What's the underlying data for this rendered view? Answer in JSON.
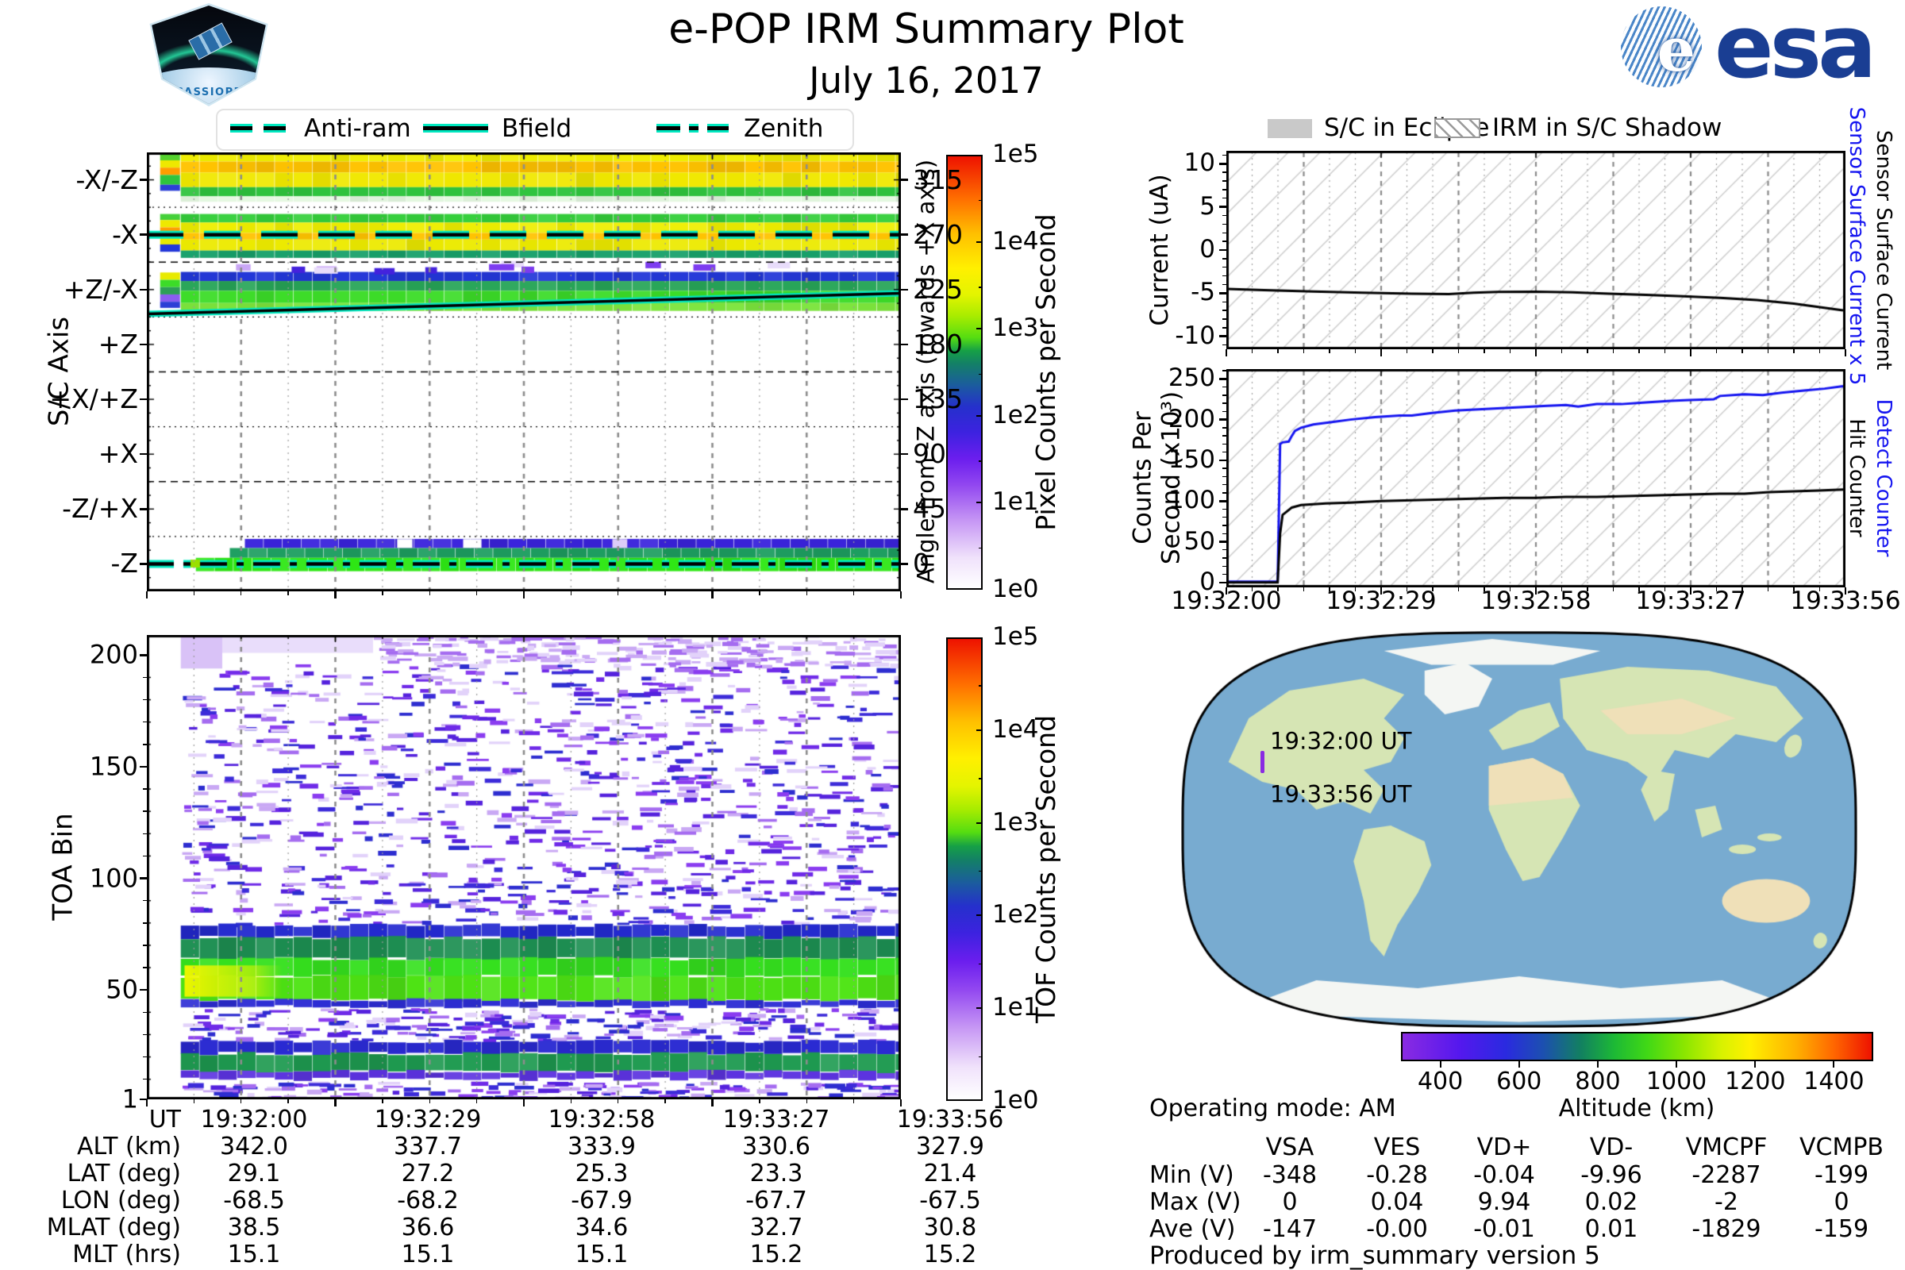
{
  "header": {
    "title": "e-POP IRM Summary Plot",
    "date": "July 16, 2017",
    "cassiope_label": "CASSIOPE",
    "esa_label": "esa"
  },
  "colors": {
    "teal": "#00e8c0",
    "series_blue": "#1414f0",
    "hatch": "#cbcbcb",
    "eclipse_gray": "#c9c9c9",
    "grid_gray": "#8c8c8c",
    "track_purple": "#8a2be2",
    "ocean": "#78abd0",
    "land": "#d6e5b4",
    "desert": "#efe0b8",
    "ice": "#f4f6f3",
    "esa_blue": "#1a3e93",
    "cassiope_blue": "#2a7fc0"
  },
  "left_legend": {
    "items": [
      {
        "label": "Anti-ram",
        "style": "dashed"
      },
      {
        "label": "Bfield",
        "style": "solid"
      },
      {
        "label": "Zenith",
        "style": "dashdot"
      }
    ]
  },
  "right_legend": {
    "items": [
      {
        "label": "S/C in Eclipse",
        "style": "gray-patch"
      },
      {
        "label": "IRM in S/C Shadow",
        "style": "hatched-patch"
      }
    ]
  },
  "time_axis": {
    "ticks": [
      "19:32:00",
      "19:32:29",
      "19:32:58",
      "19:33:27",
      "19:33:56"
    ]
  },
  "colorbar_stops": [
    [
      0,
      "#ffffff"
    ],
    [
      0.07,
      "#f0e2fb"
    ],
    [
      0.16,
      "#c493f4"
    ],
    [
      0.24,
      "#9146f0"
    ],
    [
      0.3,
      "#6b1eee"
    ],
    [
      0.36,
      "#3d22e0"
    ],
    [
      0.42,
      "#2530cc"
    ],
    [
      0.47,
      "#1b5c9e"
    ],
    [
      0.52,
      "#138066"
    ],
    [
      0.55,
      "#16a046"
    ],
    [
      0.58,
      "#55dd11"
    ],
    [
      0.63,
      "#a8ec00"
    ],
    [
      0.68,
      "#e4f400"
    ],
    [
      0.74,
      "#fff000"
    ],
    [
      0.82,
      "#ffc000"
    ],
    [
      0.9,
      "#ff7000"
    ],
    [
      1,
      "#ee1200"
    ]
  ],
  "altitude_stops": [
    [
      0,
      "#8a2be2"
    ],
    [
      0.12,
      "#5518ee"
    ],
    [
      0.22,
      "#2a2ae0"
    ],
    [
      0.3,
      "#1c50b0"
    ],
    [
      0.38,
      "#128060"
    ],
    [
      0.45,
      "#1cb836"
    ],
    [
      0.52,
      "#3fd816"
    ],
    [
      0.6,
      "#8ae600"
    ],
    [
      0.68,
      "#d8f200"
    ],
    [
      0.74,
      "#fff000"
    ],
    [
      0.84,
      "#ffb000"
    ],
    [
      0.92,
      "#ff6600"
    ],
    [
      1,
      "#ee1200"
    ]
  ],
  "chart_data": [
    {
      "id": "sc-axis-spectrogram",
      "type": "heatmap",
      "ylabel": "S/C Axis",
      "categories": [
        "-X/-Z",
        "-X",
        "+Z/-X",
        "+Z",
        "+X/+Z",
        "+X",
        "-Z/+X",
        "-Z"
      ],
      "category_angles": [
        315,
        270,
        225,
        180,
        135,
        90,
        45,
        0
      ],
      "right_axis": {
        "label": "Angle from -Z axis (towards +X axis)",
        "ticks": [
          0,
          45,
          90,
          135,
          180,
          225,
          270,
          315
        ]
      },
      "ylim": [
        -22.5,
        337.5
      ],
      "x_range": [
        "19:32:00",
        "19:33:56"
      ],
      "data_start_frac": 0.045,
      "colorbar": {
        "label": "Pixel Counts per Second",
        "ticks": [
          "1e0",
          "1e1",
          "1e2",
          "1e3",
          "1e4",
          "1e5"
        ]
      },
      "bands": [
        {
          "a0": 330,
          "a1": 337.5,
          "c": "#f0ee00"
        },
        {
          "a0": 321,
          "a1": 330,
          "c": "#ffc300"
        },
        {
          "a0": 309,
          "a1": 321,
          "c": "#f0e800"
        },
        {
          "a0": 301.5,
          "a1": 309,
          "c": "#2fc43e"
        },
        {
          "a0": 297,
          "a1": 301.5,
          "c": "#e4f8e0"
        },
        {
          "a0": 280,
          "a1": 287,
          "c": "#35cf3b"
        },
        {
          "a0": 271.5,
          "a1": 280,
          "c": "#eeee00"
        },
        {
          "a0": 266,
          "a1": 271.5,
          "c": "#ffc300"
        },
        {
          "a0": 257,
          "a1": 266,
          "c": "#ecea00"
        },
        {
          "a0": 251,
          "a1": 257,
          "c": "#17a06a"
        },
        {
          "a0": 232,
          "a1": 239.5,
          "c": "#2337d8"
        },
        {
          "a0": 224,
          "a1": 232,
          "c": "#27a558"
        },
        {
          "a0": 214,
          "a1": 224,
          "c": "#3cdc28"
        },
        {
          "a0": 207.5,
          "a1": 214,
          "c": "#7ce43c"
        },
        {
          "a0": 13,
          "a1": 20.5,
          "c": "#3a23dc",
          "x0": 0.13
        },
        {
          "a0": 5,
          "a1": 13,
          "c": "#1d9e60",
          "x0": 0.11
        },
        {
          "a0": -6,
          "a1": 5,
          "c": "#2ee714",
          "x0": 0.065
        }
      ],
      "onset": [
        {
          "a0": 331,
          "a1": 337,
          "c": "#55d22e"
        },
        {
          "a0": 325,
          "a1": 331,
          "c": "#eee800"
        },
        {
          "a0": 319,
          "a1": 325,
          "c": "#ff9d00"
        },
        {
          "a0": 311,
          "a1": 319,
          "c": "#2fc43e"
        },
        {
          "a0": 306,
          "a1": 311,
          "c": "#2c3fd6"
        },
        {
          "a0": 282,
          "a1": 287,
          "c": "#45d03a"
        },
        {
          "a0": 276,
          "a1": 282,
          "c": "#eee800"
        },
        {
          "a0": 269,
          "a1": 276,
          "c": "#ff9d00"
        },
        {
          "a0": 262,
          "a1": 269,
          "c": "#e8ea00"
        },
        {
          "a0": 256,
          "a1": 262,
          "c": "#2337d8"
        },
        {
          "a0": 233,
          "a1": 239,
          "c": "#e8ea00"
        },
        {
          "a0": 227,
          "a1": 233,
          "c": "#3cdc28"
        },
        {
          "a0": 221,
          "a1": 227,
          "c": "#2d9e57"
        },
        {
          "a0": 215,
          "a1": 221,
          "c": "#8a5cf0"
        },
        {
          "a0": 210,
          "a1": 215,
          "c": "#2c3fd6"
        }
      ],
      "speckles": {
        "count": 13,
        "angle_range": [
          242,
          249
        ],
        "colors": [
          "#7d3cf0",
          "#c9a6f5",
          "#4422dd",
          "#e8dcfa"
        ]
      },
      "lines": [
        {
          "name": "Anti-ram",
          "angle": 270,
          "style": "dashed"
        },
        {
          "name": "Bfield",
          "angle_start": 205,
          "angle_end": 222,
          "style": "solid"
        },
        {
          "name": "Zenith",
          "angle": 0,
          "style": "dashdot"
        }
      ]
    },
    {
      "id": "toa-spectrogram",
      "type": "heatmap",
      "ylabel": "TOA Bin",
      "yticks": [
        1,
        50,
        100,
        150,
        200
      ],
      "ylim": [
        1,
        209
      ],
      "x_range": [
        "19:32:00",
        "19:33:56"
      ],
      "data_start_frac": 0.045,
      "colorbar": {
        "label": "TOF Counts per Second",
        "ticks": [
          "1e0",
          "1e1",
          "1e2",
          "1e3",
          "1e4",
          "1e5"
        ]
      },
      "bands": [
        {
          "b0": 73.5,
          "b1": 79,
          "c": "#2329cf"
        },
        {
          "b0": 64,
          "b1": 73.5,
          "c": "#1d8f52"
        },
        {
          "b0": 56,
          "b1": 64,
          "c": "#35e01e"
        },
        {
          "b0": 45.5,
          "b1": 56,
          "c": "#4ee414"
        },
        {
          "b0": 42.5,
          "b1": 45.5,
          "c": "#2d2dd4"
        },
        {
          "b0": 21.5,
          "b1": 27,
          "c": "#2a2ad2"
        },
        {
          "b0": 13.5,
          "b1": 21.5,
          "c": "#1e9a50"
        },
        {
          "b0": 10,
          "b1": 13.5,
          "c": "#5c33e0"
        }
      ],
      "hotspot": {
        "x0": 0.05,
        "x1": 0.18,
        "b0": 47,
        "b1": 61,
        "c": "#ecf600"
      },
      "lavender": [
        {
          "x0": 0.045,
          "x1": 0.1,
          "b0": 194,
          "b1": 209,
          "c": "#d9c2f7"
        },
        {
          "x0": 0.1,
          "x1": 0.3,
          "b0": 201,
          "b1": 209,
          "c": "#e9ddfb"
        }
      ],
      "noise": [
        {
          "b0": 80,
          "b1": 196,
          "n": 950
        },
        {
          "b0": 28,
          "b1": 42,
          "n": 230
        },
        {
          "b0": 2,
          "b1": 9,
          "n": 150
        },
        {
          "b0": 196,
          "b1": 209,
          "n": 210,
          "light": 1,
          "xmin": 0.3
        }
      ],
      "palette": [
        "#e2d2fa",
        "#c9a8f4",
        "#a56cf0",
        "#8a3cf0",
        "#6f2ae8",
        "#5522dd",
        "#3c2bd9",
        "#2d2dd0"
      ]
    },
    {
      "id": "sensor-current",
      "type": "line",
      "ylabel": "Current (uA)",
      "yticks": [
        -10,
        -5,
        0,
        5,
        10
      ],
      "ylim": [
        -11.5,
        11.5
      ],
      "minor_start": -11,
      "minor_end": 11,
      "minor_step": 1,
      "right_labels": [
        {
          "text": "Sensor Surface Current x 5",
          "color": "#1414f0"
        },
        {
          "text": "Sensor Surface Current",
          "color": "#000000"
        }
      ],
      "hatched": true,
      "series": [
        {
          "name": "Sensor Surface Current",
          "color": "#000000",
          "x": [
            0,
            0.06,
            0.14,
            0.22,
            0.3,
            0.36,
            0.4,
            0.44,
            0.5,
            0.56,
            0.62,
            0.68,
            0.74,
            0.8,
            0.86,
            0.92,
            1
          ],
          "y": [
            -4.5,
            -4.65,
            -4.8,
            -4.95,
            -5.05,
            -5.1,
            -4.95,
            -4.85,
            -4.82,
            -4.9,
            -5.05,
            -5.2,
            -5.35,
            -5.55,
            -5.8,
            -6.2,
            -7.0
          ]
        }
      ]
    },
    {
      "id": "counter-rates",
      "type": "line",
      "ylabel": "Counts Per\nSecond (x10³)",
      "yticks": [
        0,
        50,
        100,
        150,
        200,
        250
      ],
      "ylim": [
        -6,
        262
      ],
      "minor_start": 0,
      "minor_end": 260,
      "minor_step": 10,
      "right_labels": [
        {
          "text": "Detect Counter",
          "color": "#1414f0"
        },
        {
          "text": "Hit Counter",
          "color": "#000000"
        }
      ],
      "hatched": true,
      "x_ticks": [
        "19:32:00",
        "19:32:29",
        "19:32:58",
        "19:33:27",
        "19:33:56"
      ],
      "series": [
        {
          "name": "Detect Counter",
          "color": "#1414f0",
          "x": [
            0,
            0.082,
            0.086,
            0.09,
            0.1,
            0.105,
            0.11,
            0.12,
            0.14,
            0.17,
            0.2,
            0.24,
            0.28,
            0.3,
            0.33,
            0.37,
            0.42,
            0.47,
            0.52,
            0.55,
            0.57,
            0.6,
            0.64,
            0.68,
            0.72,
            0.75,
            0.79,
            0.8,
            0.84,
            0.87,
            0.9,
            0.94,
            0.97,
            1
          ],
          "y": [
            1,
            1,
            170,
            172,
            173,
            180,
            186,
            190,
            194,
            197,
            200,
            203,
            205,
            205,
            208,
            211,
            213,
            215,
            217,
            218,
            216,
            219,
            219,
            221,
            223,
            224,
            225,
            229,
            231,
            230,
            233,
            236,
            238,
            241
          ]
        },
        {
          "name": "Hit Counter",
          "color": "#000000",
          "x": [
            0,
            0.082,
            0.086,
            0.09,
            0.095,
            0.105,
            0.12,
            0.16,
            0.2,
            0.25,
            0.3,
            0.35,
            0.4,
            0.45,
            0.5,
            0.55,
            0.6,
            0.65,
            0.7,
            0.75,
            0.8,
            0.84,
            0.88,
            0.92,
            0.96,
            1
          ],
          "y": [
            0,
            0,
            60,
            83,
            86,
            92,
            95,
            97,
            98,
            100,
            101,
            102,
            103,
            104,
            104,
            105,
            105,
            106,
            107,
            108,
            109,
            109,
            111,
            112,
            113,
            114
          ]
        }
      ]
    }
  ],
  "map_panel": {
    "times": [
      "19:32:00 UT",
      "19:33:56 UT"
    ],
    "altitude_bar": {
      "label": "Altitude (km)",
      "ticks": [
        400,
        600,
        800,
        1000,
        1200,
        1400
      ],
      "range": [
        300,
        1500
      ]
    }
  },
  "ephemeris_table": {
    "row_labels": [
      "UT",
      "ALT (km)",
      "LAT (deg)",
      "LON (deg)",
      "MLAT (deg)",
      "MLT (hrs)"
    ],
    "rows": [
      [
        "19:32:00",
        "19:32:29",
        "19:32:58",
        "19:33:27",
        "19:33:56"
      ],
      [
        "342.0",
        "337.7",
        "333.9",
        "330.6",
        "327.9"
      ],
      [
        "29.1",
        "27.2",
        "25.3",
        "23.3",
        "21.4"
      ],
      [
        "-68.5",
        "-68.2",
        "-67.9",
        "-67.7",
        "-67.5"
      ],
      [
        "38.5",
        "36.6",
        "34.6",
        "32.7",
        "30.8"
      ],
      [
        "15.1",
        "15.1",
        "15.1",
        "15.2",
        "15.2"
      ]
    ]
  },
  "voltage_table": {
    "columns": [
      "VSA",
      "VES",
      "VD+",
      "VD-",
      "VMCPF",
      "VCMPB"
    ],
    "row_labels": [
      "Min (V)",
      "Max (V)",
      "Ave (V)"
    ],
    "rows": [
      [
        "-348",
        "-0.28",
        "-0.04",
        "-9.96",
        "-2287",
        "-199"
      ],
      [
        "0",
        "0.04",
        "9.94",
        "0.02",
        "-2",
        "0"
      ],
      [
        "-147",
        "-0.00",
        "-0.01",
        "0.01",
        "-1829",
        "-159"
      ]
    ]
  },
  "footer": {
    "operating_mode": "Operating mode: AM",
    "produced_by": "Produced by irm_summary version 5"
  }
}
